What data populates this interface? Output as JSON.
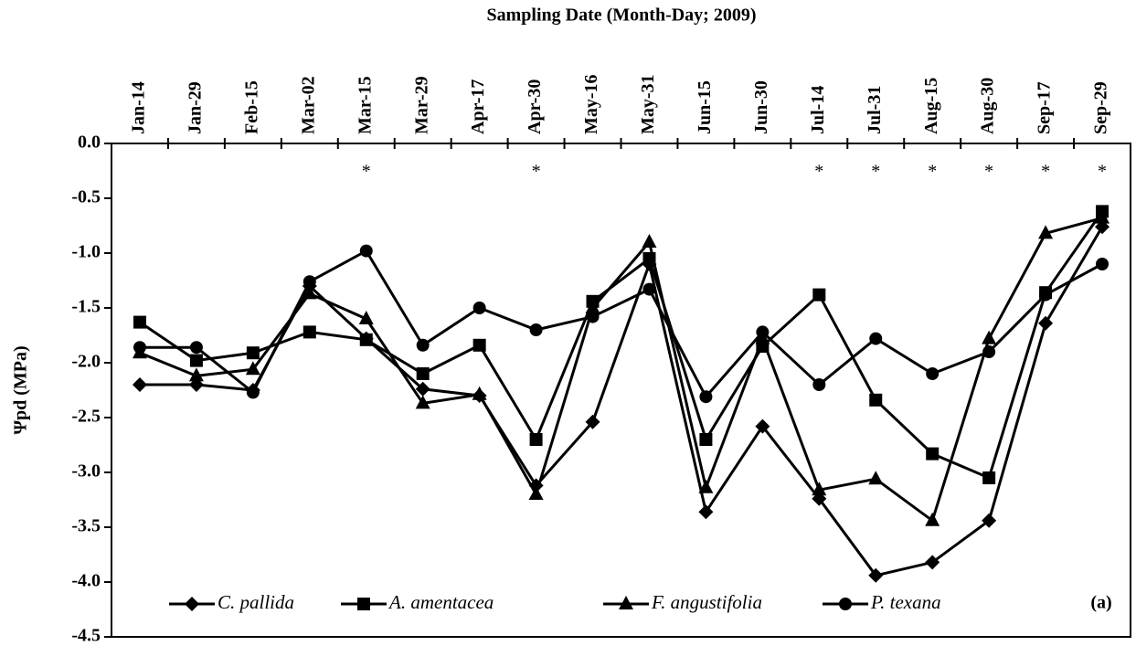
{
  "chart_data": {
    "type": "line",
    "title": "Sampling Date (Month-Day; 2009)",
    "y_label": "Ψpd (MPa)",
    "panel_label": "(a)",
    "categories": [
      "Jan-14",
      "Jan-29",
      "Feb-15",
      "Mar-02",
      "Mar-15",
      "Mar-29",
      "Apr-17",
      "Apr-30",
      "May-16",
      "May-31",
      "Jun-15",
      "Jun-30",
      "Jul-14",
      "Jul-31",
      "Aug-15",
      "Aug-30",
      "Sep-17",
      "Sep-29"
    ],
    "series": [
      {
        "name": "C. pallida",
        "color": "#000000",
        "marker": "diamond",
        "values": [
          -2.2,
          -2.2,
          -2.25,
          -1.3,
          -1.78,
          -2.24,
          -2.3,
          -3.12,
          -2.54,
          -1.1,
          -3.36,
          -2.58,
          -3.24,
          -3.94,
          -3.82,
          -3.44,
          -1.64,
          -0.76
        ]
      },
      {
        "name": "A. amentacea",
        "color": "#000000",
        "marker": "square",
        "values": [
          -1.63,
          -1.98,
          -1.91,
          -1.72,
          -1.79,
          -2.1,
          -1.84,
          -2.7,
          -1.44,
          -1.05,
          -2.7,
          -1.85,
          -1.38,
          -2.34,
          -2.83,
          -3.05,
          -1.36,
          -0.62
        ]
      },
      {
        "name": "F. angustifolia",
        "color": "#000000",
        "marker": "triangle",
        "values": [
          -1.91,
          -2.12,
          -2.06,
          -1.37,
          -1.6,
          -2.37,
          -2.29,
          -3.2,
          -1.5,
          -0.9,
          -3.14,
          -1.78,
          -3.16,
          -3.06,
          -3.44,
          -1.78,
          -0.82,
          -0.68
        ]
      },
      {
        "name": "P. texana",
        "color": "#000000",
        "marker": "circle",
        "values": [
          -1.86,
          -1.86,
          -2.27,
          -1.26,
          -0.98,
          -1.84,
          -1.5,
          -1.7,
          -1.58,
          -1.33,
          -2.31,
          -1.72,
          -2.2,
          -1.78,
          -2.1,
          -1.9,
          -1.38,
          -1.1
        ]
      }
    ],
    "annotations": [
      {
        "x": "Mar-15",
        "text": "*"
      },
      {
        "x": "Apr-30",
        "text": "*"
      },
      {
        "x": "Jul-14",
        "text": "*"
      },
      {
        "x": "Jul-31",
        "text": "*"
      },
      {
        "x": "Aug-15",
        "text": "*"
      },
      {
        "x": "Aug-30",
        "text": "*"
      },
      {
        "x": "Sep-17",
        "text": "*"
      },
      {
        "x": "Sep-29",
        "text": "*"
      }
    ],
    "ylim": [
      -4.5,
      0
    ],
    "yticks": [
      {
        "value": -4.5,
        "label": "-4.5"
      },
      {
        "value": -4,
        "label": "-4.0"
      },
      {
        "value": -3.5,
        "label": "-3.5"
      },
      {
        "value": -3,
        "label": "-3.0"
      },
      {
        "value": -2.5,
        "label": "-2.5"
      },
      {
        "value": -2,
        "label": "-2.0"
      },
      {
        "value": -1.5,
        "label": "-1.5"
      },
      {
        "value": -1,
        "label": "-1.0"
      },
      {
        "value": -0.5,
        "label": "-0.5"
      },
      {
        "value": 0,
        "label": "0.0"
      }
    ],
    "grid": false,
    "legend": "bottom"
  }
}
